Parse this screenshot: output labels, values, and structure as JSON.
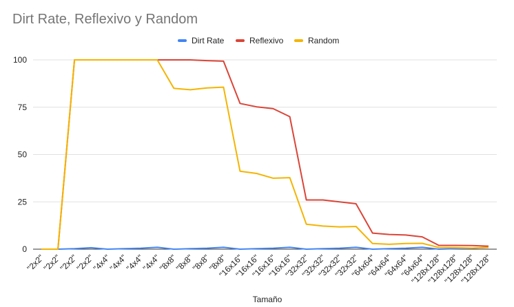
{
  "chart_data": {
    "type": "line",
    "title": "Dirt Rate, Reflexivo y Random",
    "xlabel": "Tamaño",
    "ylabel": "",
    "ylim": [
      0,
      100
    ],
    "yticks": [
      0,
      25,
      50,
      75,
      100
    ],
    "grid": true,
    "legend_position": "top",
    "categories": [
      "\"2x2\"",
      "\"2x2\"",
      "\"2x2\"",
      "\"2x2\"",
      "\"4x4\"",
      "\"4x4\"",
      "\"4x4\"",
      "\"4x4\"",
      "\"8x8\"",
      "\"8x8\"",
      "\"8x8\"",
      "\"8x8\"",
      "\"16x16\"",
      "\"16x16\"",
      "\"16x16\"",
      "\"16x16\"",
      "\"32x32\"",
      "\"32x32\"",
      "\"32x32\"",
      "\"32x32\"",
      "\"64x64\"",
      "\"64x64\"",
      "\"64x64\"",
      "\"64x64\"",
      "\"128x128\"",
      "\"128x128\"",
      "\"128x128\"",
      "\"128x128\""
    ],
    "series": [
      {
        "name": "Dirt Rate",
        "color": "#4285f4",
        "values": [
          0,
          0,
          0.25,
          0.75,
          0,
          0.25,
          0.5,
          1,
          0,
          0.25,
          0.5,
          1,
          0,
          0.25,
          0.5,
          1,
          0,
          0.25,
          0.5,
          1,
          0,
          0.25,
          0.5,
          1,
          0,
          0.25,
          0.5,
          1
        ]
      },
      {
        "name": "Reflexivo",
        "color": "#db4437",
        "values": [
          0,
          0,
          100,
          100,
          100,
          100,
          100,
          100,
          100,
          100,
          99.6,
          99.3,
          77,
          75.2,
          74.2,
          70,
          26,
          26,
          25,
          24,
          8.5,
          7.8,
          7.5,
          6.5,
          2,
          2,
          1.9,
          1.6
        ]
      },
      {
        "name": "Random",
        "color": "#f4b400",
        "values": [
          0,
          0,
          100,
          100,
          100,
          100,
          100,
          100,
          85,
          84.2,
          85.2,
          85.6,
          41.2,
          40,
          37.5,
          37.8,
          13.2,
          12.2,
          11.8,
          12,
          3,
          2.6,
          3,
          3.1,
          0.9,
          0.8,
          0.6,
          0.9
        ]
      }
    ]
  }
}
